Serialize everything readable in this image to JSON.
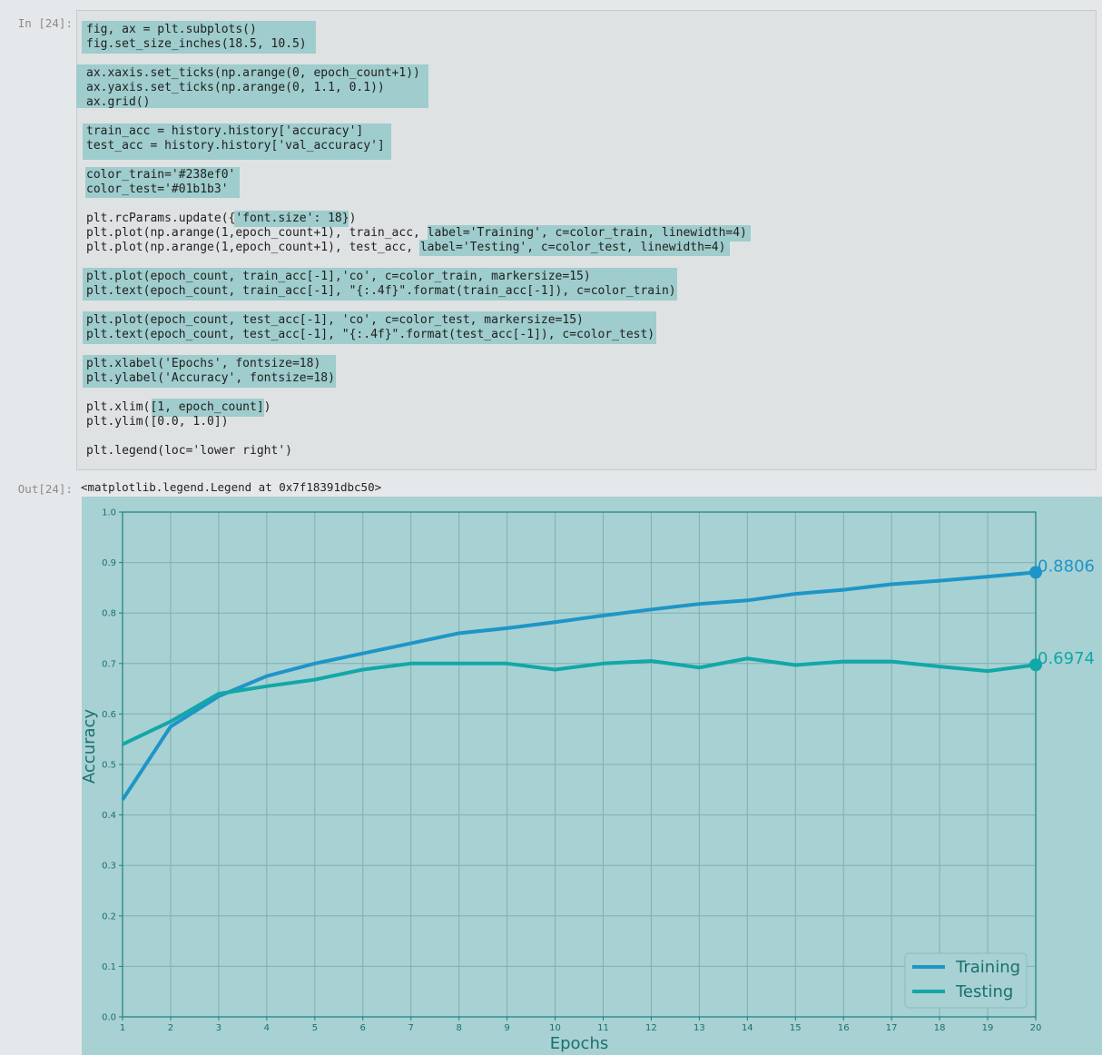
{
  "prompts": {
    "in": "In [24]:",
    "out": "Out[24]:"
  },
  "code_lines": [
    "fig, ax = plt.subplots()",
    "fig.set_size_inches(18.5, 10.5)",
    "",
    "ax.xaxis.set_ticks(np.arange(0, epoch_count+1))",
    "ax.yaxis.set_ticks(np.arange(0, 1.1, 0.1))",
    "ax.grid()",
    "",
    "train_acc = history.history['accuracy']",
    "test_acc = history.history['val_accuracy']",
    "",
    "color_train='#238ef0'",
    "color_test='#01b1b3'",
    "",
    "plt.rcParams.update({'font.size': 18})",
    "plt.plot(np.arange(1,epoch_count+1), train_acc, label='Training', c=color_train, linewidth=4)",
    "plt.plot(np.arange(1,epoch_count+1), test_acc, label='Testing', c=color_test, linewidth=4)",
    "",
    "plt.plot(epoch_count, train_acc[-1],'co', c=color_train, markersize=15)",
    "plt.text(epoch_count, train_acc[-1], \"{:.4f}\".format(train_acc[-1]), c=color_train)",
    "",
    "plt.plot(epoch_count, test_acc[-1], 'co', c=color_test, markersize=15)",
    "plt.text(epoch_count, test_acc[-1], \"{:.4f}\".format(test_acc[-1]), c=color_test)",
    "",
    "plt.xlabel('Epochs', fontsize=18)",
    "plt.ylabel('Accuracy', fontsize=18)",
    "",
    "plt.xlim([1, epoch_count])",
    "plt.ylim([0.0, 1.0])",
    "",
    "plt.legend(loc='lower right')"
  ],
  "output_text": "<matplotlib.legend.Legend at 0x7f18391dbc50>",
  "chart_data": {
    "type": "line",
    "x": [
      1,
      2,
      3,
      4,
      5,
      6,
      7,
      8,
      9,
      10,
      11,
      12,
      13,
      14,
      15,
      16,
      17,
      18,
      19,
      20
    ],
    "series": [
      {
        "name": "Training",
        "color": "#1e95c9",
        "values": [
          0.43,
          0.575,
          0.635,
          0.675,
          0.7,
          0.72,
          0.74,
          0.76,
          0.77,
          0.782,
          0.795,
          0.807,
          0.818,
          0.825,
          0.838,
          0.846,
          0.857,
          0.864,
          0.872,
          0.8806
        ]
      },
      {
        "name": "Testing",
        "color": "#12a7a8",
        "values": [
          0.54,
          0.585,
          0.64,
          0.655,
          0.668,
          0.688,
          0.7,
          0.7,
          0.7,
          0.688,
          0.7,
          0.705,
          0.692,
          0.71,
          0.697,
          0.704,
          0.704,
          0.694,
          0.685,
          0.6974
        ]
      }
    ],
    "end_labels": [
      "0.8806",
      "0.6974"
    ],
    "xticks": [
      "1",
      "2",
      "3",
      "4",
      "5",
      "6",
      "7",
      "8",
      "9",
      "10",
      "11",
      "12",
      "13",
      "14",
      "15",
      "16",
      "17",
      "18",
      "19",
      "20"
    ],
    "yticks": [
      "0.0",
      "0.1",
      "0.2",
      "0.3",
      "0.4",
      "0.5",
      "0.6",
      "0.7",
      "0.8",
      "0.9",
      "1.0"
    ],
    "xlabel": "Epochs",
    "ylabel": "Accuracy",
    "xlim": [
      1,
      20
    ],
    "ylim": [
      0.0,
      1.0
    ],
    "grid": true,
    "legend_position": "lower-right"
  }
}
